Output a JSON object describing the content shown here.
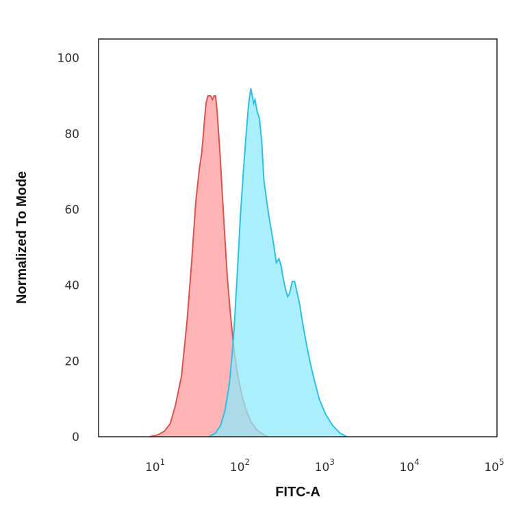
{
  "chart_data": {
    "type": "area",
    "title": "",
    "xlabel": "FITC-A",
    "ylabel": "Normalized To Mode",
    "xscale": "log",
    "xlim": [
      2,
      100000
    ],
    "ylim": [
      0,
      105
    ],
    "grid": false,
    "legend": "none",
    "y_ticks": [
      0,
      20,
      40,
      60,
      80,
      100
    ],
    "y_tick_labels": [
      "0",
      "20",
      "40",
      "60",
      "80",
      "100"
    ],
    "x_ticks": [
      10,
      100,
      1000,
      10000,
      100000
    ],
    "x_tick_labels": [
      {
        "base": "10",
        "exp": "1"
      },
      {
        "base": "10",
        "exp": "2"
      },
      {
        "base": "10",
        "exp": "3"
      },
      {
        "base": "10",
        "exp": "4"
      },
      {
        "base": "10",
        "exp": "5"
      }
    ],
    "series": [
      {
        "fill": "#ff9c9c",
        "stroke": "#d9534f",
        "points": [
          [
            8,
            0
          ],
          [
            10,
            0.5
          ],
          [
            12,
            1.5
          ],
          [
            14,
            3.5
          ],
          [
            16,
            8
          ],
          [
            19,
            16
          ],
          [
            22,
            30
          ],
          [
            25,
            46
          ],
          [
            28,
            62
          ],
          [
            31,
            71
          ],
          [
            33,
            75
          ],
          [
            35,
            82
          ],
          [
            37,
            88
          ],
          [
            39,
            90
          ],
          [
            42,
            90
          ],
          [
            44,
            89
          ],
          [
            46,
            90
          ],
          [
            48,
            90
          ],
          [
            50,
            86
          ],
          [
            54,
            75
          ],
          [
            58,
            63
          ],
          [
            62,
            52
          ],
          [
            66,
            42
          ],
          [
            72,
            32
          ],
          [
            80,
            22
          ],
          [
            88,
            16
          ],
          [
            98,
            11
          ],
          [
            110,
            7
          ],
          [
            125,
            4
          ],
          [
            145,
            2
          ],
          [
            170,
            0.8
          ],
          [
            200,
            0
          ]
        ]
      },
      {
        "fill": "#8fe8fb",
        "stroke": "#2cc0e2",
        "points": [
          [
            40,
            0
          ],
          [
            48,
            1
          ],
          [
            55,
            3
          ],
          [
            62,
            7
          ],
          [
            70,
            14
          ],
          [
            78,
            26
          ],
          [
            86,
            42
          ],
          [
            94,
            58
          ],
          [
            102,
            70
          ],
          [
            110,
            80
          ],
          [
            118,
            88
          ],
          [
            125,
            92
          ],
          [
            130,
            90
          ],
          [
            135,
            88
          ],
          [
            140,
            89
          ],
          [
            148,
            86
          ],
          [
            158,
            84
          ],
          [
            168,
            78
          ],
          [
            178,
            68
          ],
          [
            190,
            63
          ],
          [
            205,
            58
          ],
          [
            220,
            54
          ],
          [
            235,
            50
          ],
          [
            250,
            46
          ],
          [
            268,
            47
          ],
          [
            285,
            45
          ],
          [
            300,
            42
          ],
          [
            320,
            39
          ],
          [
            340,
            37
          ],
          [
            360,
            38
          ],
          [
            385,
            41
          ],
          [
            410,
            41
          ],
          [
            440,
            38
          ],
          [
            470,
            35
          ],
          [
            510,
            30
          ],
          [
            560,
            25
          ],
          [
            620,
            20
          ],
          [
            700,
            15
          ],
          [
            800,
            10
          ],
          [
            950,
            6
          ],
          [
            1150,
            3
          ],
          [
            1400,
            1
          ],
          [
            1700,
            0
          ]
        ]
      }
    ]
  }
}
